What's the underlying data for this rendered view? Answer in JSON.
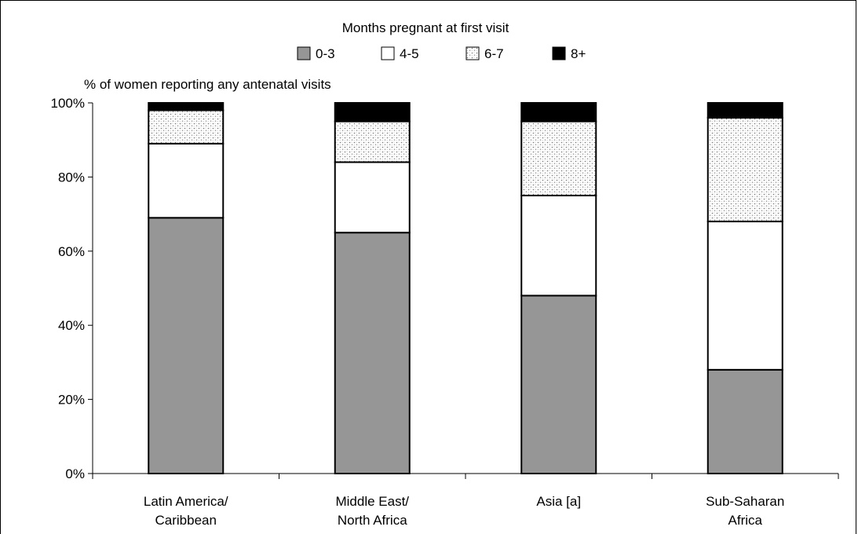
{
  "chart_data": {
    "type": "bar",
    "stacked": true,
    "legend_title": "Months pregnant at first visit",
    "legend_placement": "top-center",
    "ylabel": "% of women reporting any antenatal visits",
    "xlabel": "",
    "ylim": [
      0,
      100
    ],
    "yticks": [
      "0%",
      "20%",
      "40%",
      "60%",
      "80%",
      "100%"
    ],
    "grid": false,
    "categories": [
      [
        "Latin America/",
        "Caribbean"
      ],
      [
        "Middle East/",
        "North Africa"
      ],
      [
        "Asia [a]"
      ],
      [
        "Sub-Saharan",
        "Africa"
      ]
    ],
    "series": [
      {
        "name": "0-3",
        "fill": "gray",
        "color": "#969696",
        "values": [
          69,
          65,
          48,
          28
        ]
      },
      {
        "name": "4-5",
        "fill": "white",
        "color": "#ffffff",
        "values": [
          20,
          19,
          27,
          40
        ]
      },
      {
        "name": "6-7",
        "fill": "dotted",
        "color": "#e6e6e6",
        "values": [
          9,
          11,
          20,
          28
        ]
      },
      {
        "name": "8+",
        "fill": "black",
        "color": "#000000",
        "values": [
          2,
          5,
          5,
          4
        ]
      }
    ]
  }
}
